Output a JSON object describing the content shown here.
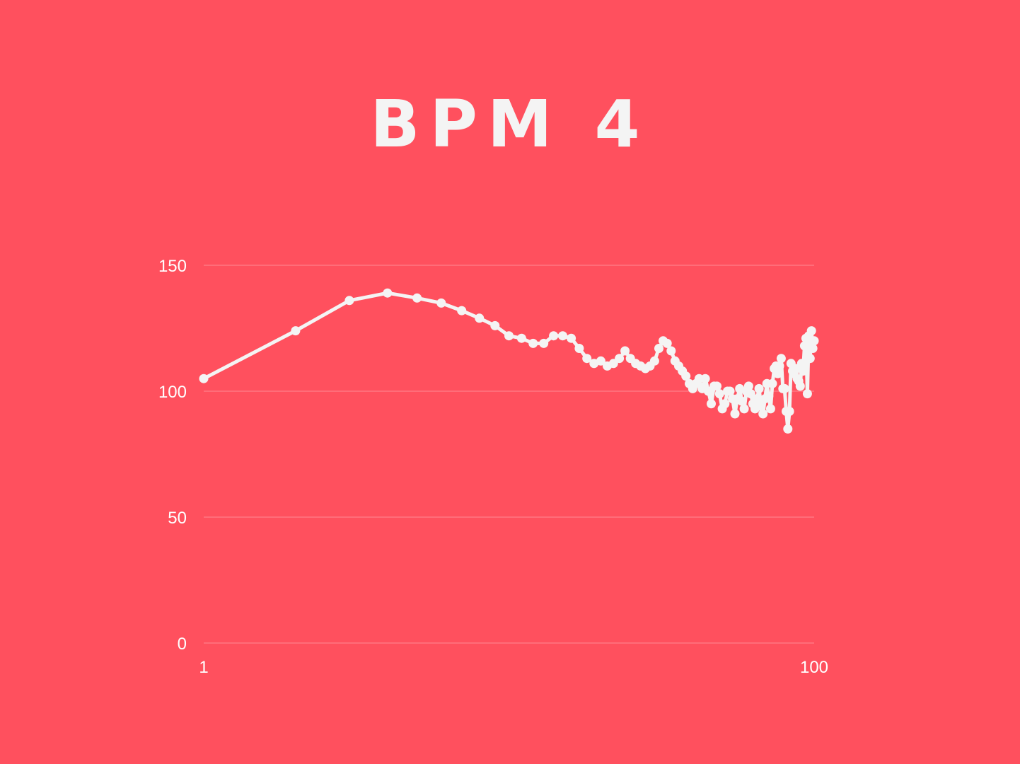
{
  "title": "BPM 4",
  "colors": {
    "background": "#ff505e",
    "line": "#f4f4f4",
    "grid": "#ff8a94",
    "text": "#ffffff"
  },
  "chart_data": {
    "type": "line",
    "title": "BPM 4",
    "xlabel": "",
    "ylabel": "",
    "x_axis_scale": "log",
    "xlim": [
      1,
      100
    ],
    "ylim": [
      0,
      150
    ],
    "y_ticks": [
      0,
      50,
      100,
      150
    ],
    "x_tick_labels": [
      "1",
      "100"
    ],
    "y_tick_labels": [
      "0",
      "50",
      "100",
      "150"
    ],
    "grid": "horizontal",
    "legend": "none",
    "series": [
      {
        "values": [
          105,
          124,
          136,
          139,
          137,
          135,
          132,
          129,
          126,
          122,
          121,
          119,
          119,
          122,
          122,
          121,
          117,
          113,
          111,
          112,
          110,
          111,
          113,
          116,
          113,
          111,
          110,
          109,
          110,
          112,
          117,
          120,
          119,
          116,
          112,
          110,
          108,
          106,
          103,
          101,
          103,
          105,
          101,
          105,
          100,
          95,
          102,
          102,
          99,
          93,
          95,
          100,
          100,
          97,
          91,
          97,
          101,
          96,
          93,
          100,
          102,
          99,
          95,
          93,
          97,
          101,
          94,
          91,
          97,
          103,
          98,
          93,
          103,
          109,
          110,
          107,
          110,
          113,
          101,
          101,
          92,
          85,
          92,
          111,
          108,
          107,
          109,
          105,
          104,
          102,
          111,
          108,
          118,
          121,
          99,
          122,
          113,
          124,
          117,
          120
        ]
      }
    ]
  }
}
